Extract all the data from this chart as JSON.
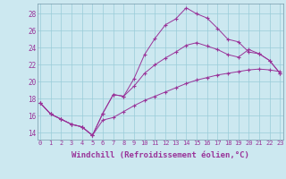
{
  "background_color": "#cce8f0",
  "grid_color": "#99ccd9",
  "line_color": "#993399",
  "marker": "+",
  "xlabel": "Windchill (Refroidissement éolien,°C)",
  "yticks": [
    14,
    16,
    18,
    20,
    22,
    24,
    26,
    28
  ],
  "xticks": [
    0,
    1,
    2,
    3,
    4,
    5,
    6,
    7,
    8,
    9,
    10,
    11,
    12,
    13,
    14,
    15,
    16,
    17,
    18,
    19,
    20,
    21,
    22,
    23
  ],
  "xlim": [
    -0.3,
    23.3
  ],
  "ylim": [
    13.2,
    29.2
  ],
  "series": [
    {
      "x": [
        0,
        1,
        2,
        3,
        4,
        5,
        6,
        7,
        8,
        9,
        10,
        11,
        12,
        13,
        14,
        15,
        16,
        17,
        18,
        19,
        20,
        21,
        22,
        23
      ],
      "y": [
        17.5,
        16.2,
        15.6,
        15.0,
        14.7,
        13.7,
        16.3,
        18.5,
        18.3,
        20.4,
        23.2,
        25.1,
        26.7,
        27.4,
        28.7,
        28.0,
        27.5,
        26.3,
        25.0,
        24.7,
        23.5,
        23.3,
        22.5,
        21.0
      ]
    },
    {
      "x": [
        0,
        1,
        2,
        3,
        4,
        5,
        6,
        7,
        8,
        9,
        10,
        11,
        12,
        13,
        14,
        15,
        16,
        17,
        18,
        19,
        20,
        21,
        22,
        23
      ],
      "y": [
        17.5,
        16.2,
        15.6,
        15.0,
        14.7,
        13.7,
        16.3,
        18.5,
        18.3,
        19.5,
        21.0,
        22.0,
        22.8,
        23.5,
        24.3,
        24.6,
        24.2,
        23.8,
        23.2,
        22.9,
        23.8,
        23.3,
        22.5,
        21.0
      ]
    },
    {
      "x": [
        0,
        1,
        2,
        3,
        4,
        5,
        6,
        7,
        8,
        9,
        10,
        11,
        12,
        13,
        14,
        15,
        16,
        17,
        18,
        19,
        20,
        21,
        22,
        23
      ],
      "y": [
        17.5,
        16.2,
        15.6,
        15.0,
        14.7,
        13.7,
        15.5,
        15.8,
        16.5,
        17.2,
        17.8,
        18.3,
        18.8,
        19.3,
        19.8,
        20.2,
        20.5,
        20.8,
        21.0,
        21.2,
        21.4,
        21.5,
        21.4,
        21.2
      ]
    }
  ],
  "tick_fontsize": 5.0,
  "axis_fontsize": 6.5
}
